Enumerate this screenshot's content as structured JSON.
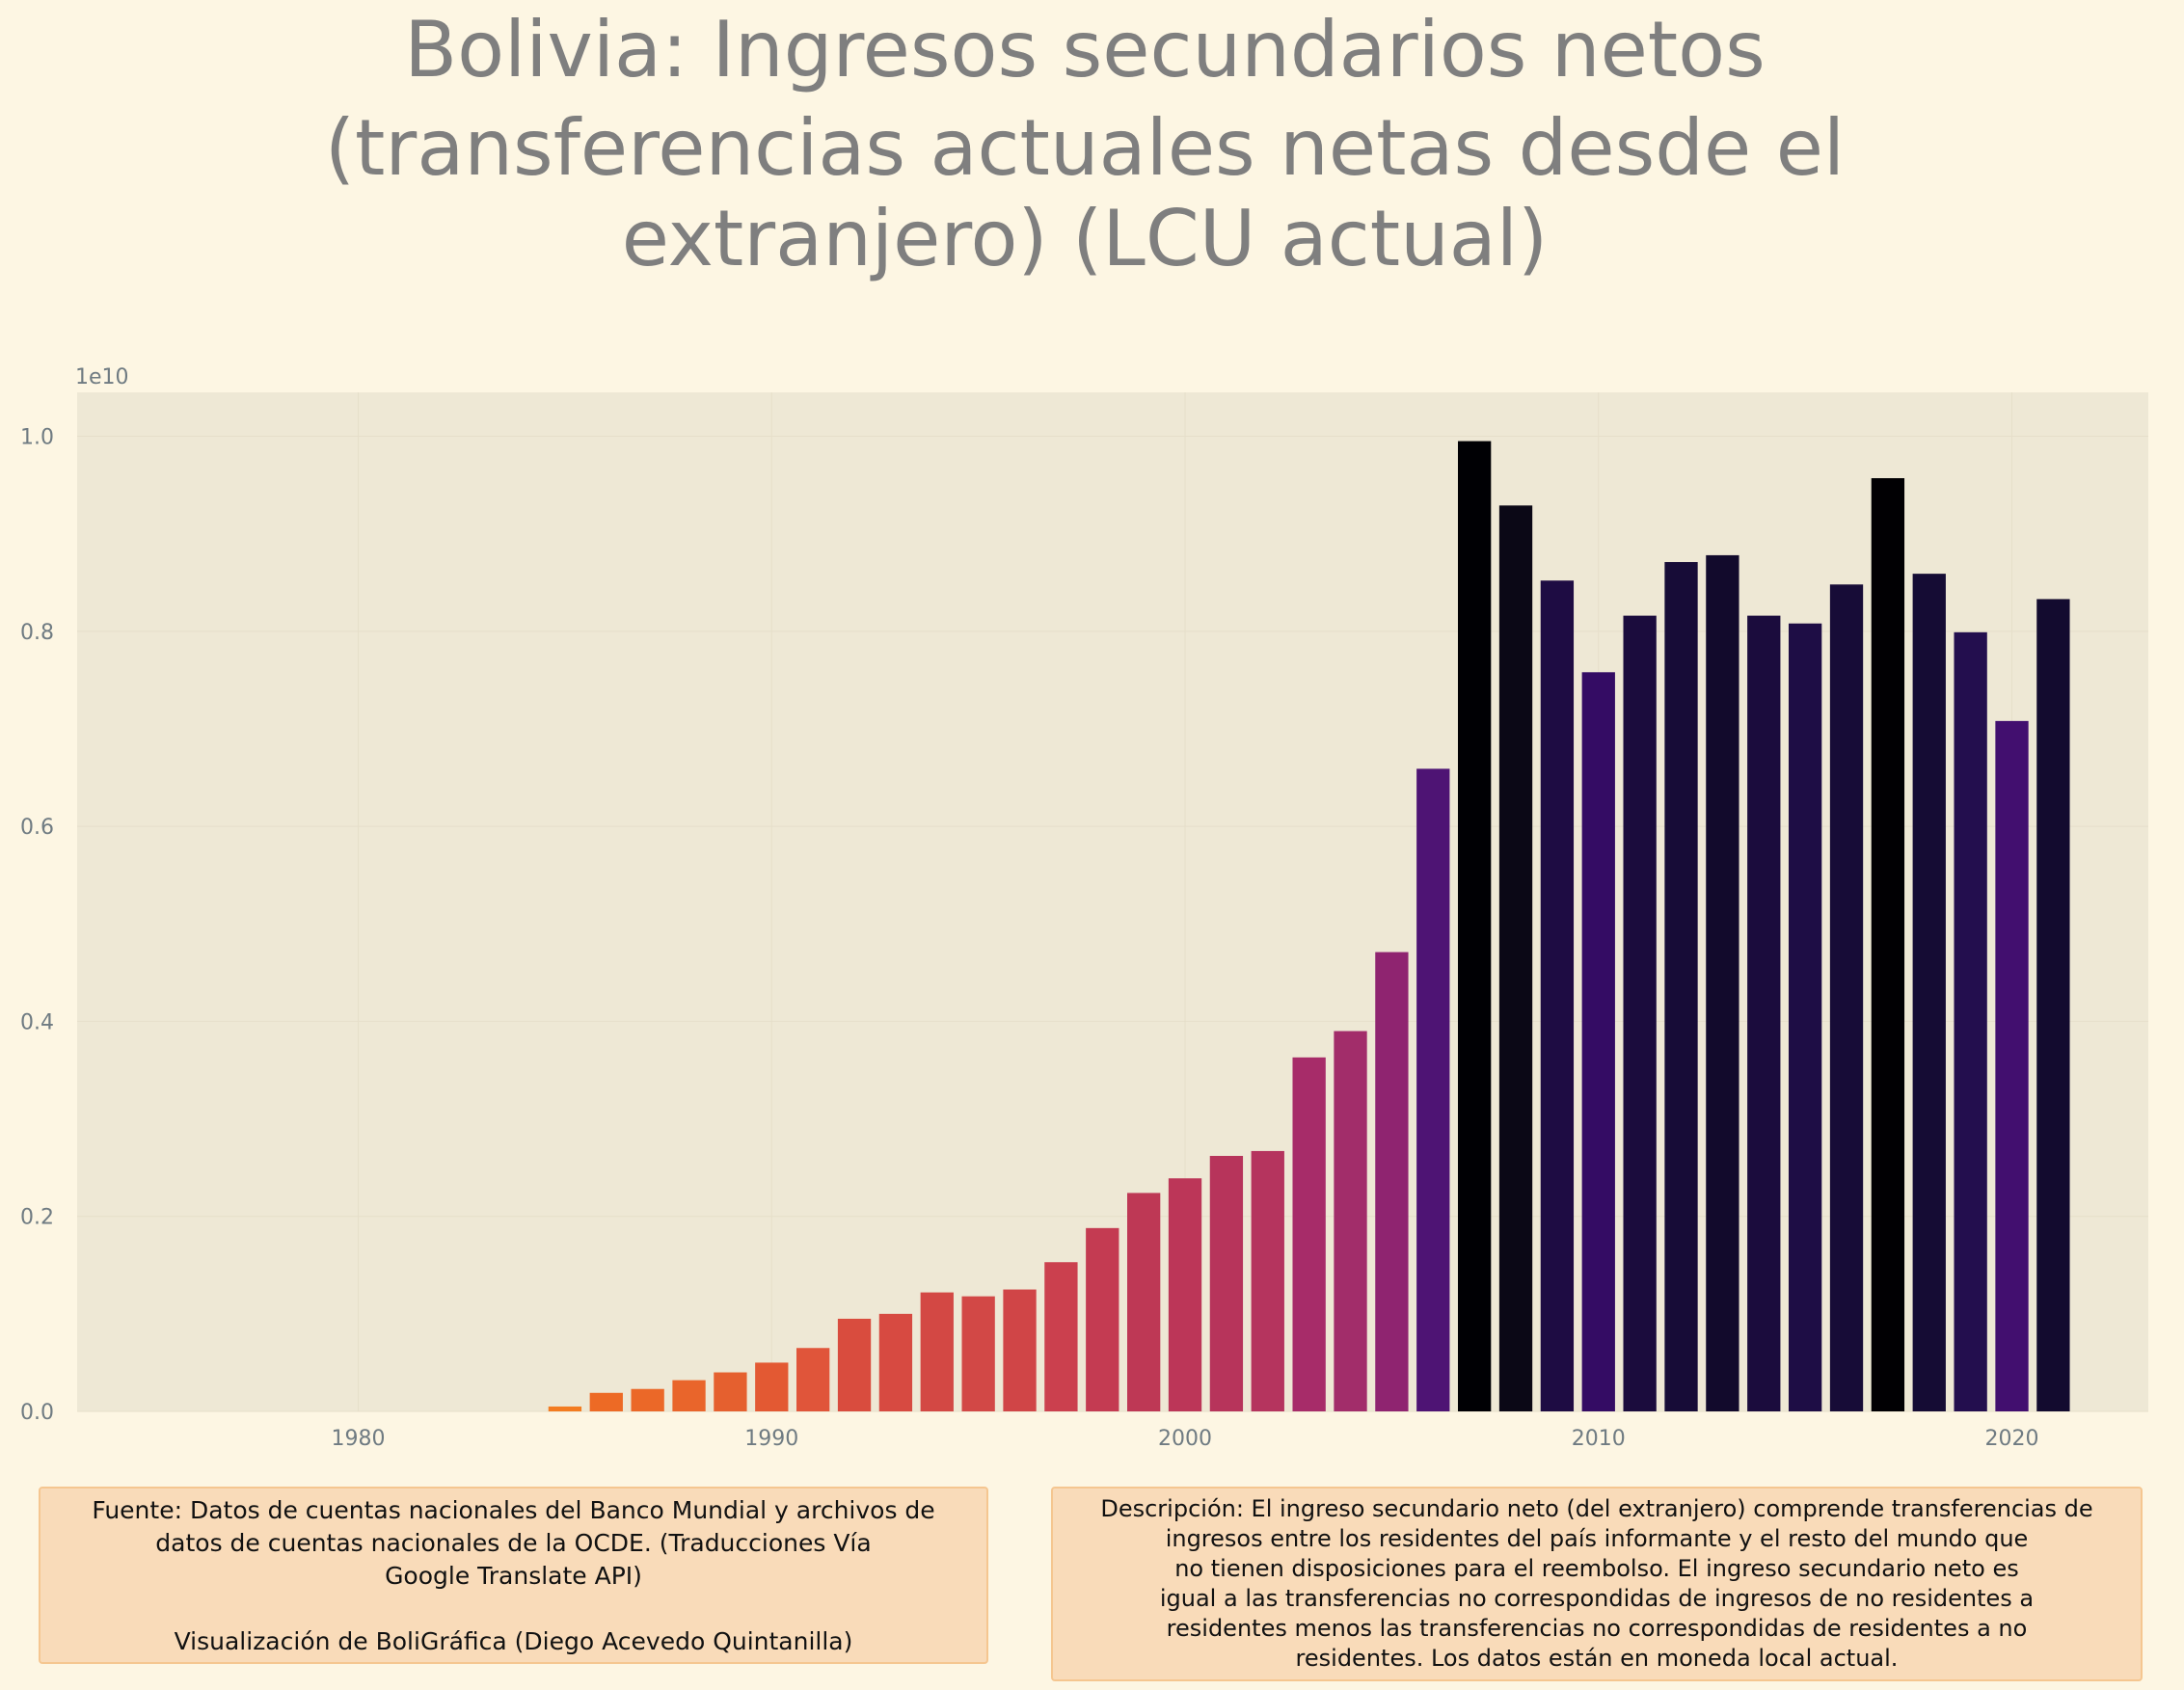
{
  "chart_data": {
    "type": "bar",
    "title": [
      "Bolivia:  Ingresos secundarios netos",
      "(transferencias actuales netas desde el",
      "extranjero) (LCU actual)"
    ],
    "xlabel": "",
    "ylabel": "",
    "y_offset_label": "1e10",
    "x_ticks": [
      "1980",
      "1990",
      "2000",
      "2010",
      "2020"
    ],
    "y_ticks": [
      "0.0",
      "0.2",
      "0.4",
      "0.6",
      "0.8",
      "1.0"
    ],
    "xlim": [
      1973.2,
      2023.3
    ],
    "ylim": [
      0,
      1.045
    ],
    "y_unit_scale": 10000000000.0,
    "grid": true,
    "colormap": "magma",
    "x": [
      1985,
      1986,
      1987,
      1988,
      1989,
      1990,
      1991,
      1992,
      1993,
      1994,
      1995,
      1996,
      1997,
      1998,
      1999,
      2000,
      2001,
      2002,
      2003,
      2004,
      2005,
      2006,
      2007,
      2008,
      2009,
      2010,
      2011,
      2012,
      2013,
      2014,
      2015,
      2016,
      2017,
      2018,
      2019,
      2020,
      2021
    ],
    "values": [
      0.005,
      0.019,
      0.023,
      0.032,
      0.04,
      0.05,
      0.065,
      0.095,
      0.1,
      0.122,
      0.118,
      0.125,
      0.153,
      0.188,
      0.224,
      0.239,
      0.262,
      0.267,
      0.363,
      0.39,
      0.471,
      0.659,
      0.995,
      0.929,
      0.852,
      0.758,
      0.816,
      0.871,
      0.878,
      0.816,
      0.808,
      0.848,
      0.957,
      0.859,
      0.799,
      0.708,
      0.833
    ],
    "colors": [
      "#f37c21",
      "#ed6a25",
      "#eb6828",
      "#e9652b",
      "#e5602f",
      "#e35933",
      "#e0553a",
      "#d94c3e",
      "#d74a41",
      "#d34844",
      "#d24846",
      "#d04547",
      "#cb404e",
      "#c43b52",
      "#be3855",
      "#bc3658",
      "#b7345b",
      "#b5345e",
      "#a72c69",
      "#a22d6a",
      "#8f2470",
      "#4e1474",
      "#000004",
      "#0b0816",
      "#1e0c43",
      "#340c64",
      "#1b0c3d",
      "#170c37",
      "#120a2c",
      "#1b0c3d",
      "#1e0d45",
      "#170c37",
      "#010003",
      "#150c34",
      "#230e4e",
      "#420f6f",
      "#130b2f"
    ]
  },
  "source_box": {
    "lines": [
      "Fuente: Datos de cuentas nacionales del Banco Mundial y archivos de",
      "datos de cuentas nacionales de la OCDE. (Traducciones Vía",
      "Google Translate API)"
    ],
    "credit": "Visualización de BoliGráfica (Diego Acevedo Quintanilla)"
  },
  "description_box": {
    "lines": [
      "Descripción: El ingreso secundario neto (del extranjero) comprende transferencias de",
      "ingresos entre los residentes del país informante y el resto del mundo que",
      "no tienen disposiciones para el reembolso. El ingreso secundario neto es",
      "igual a las transferencias no correspondidas de ingresos de no residentes a",
      "residentes menos las transferencias no correspondidas de residentes a no",
      "residentes. Los datos están en moneda local actual."
    ]
  }
}
